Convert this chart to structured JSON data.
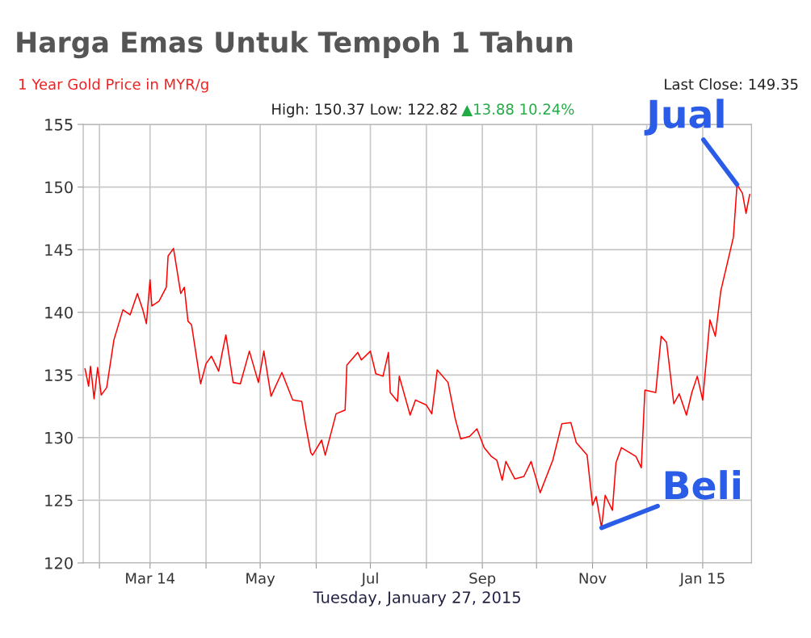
{
  "chart_data": {
    "type": "line",
    "title": "Harga Emas Untuk Tempoh 1 Tahun",
    "subtitle": "1 Year Gold Price in MYR/g",
    "xlabel": "Tuesday, January 27, 2015",
    "annotations": [
      "Last Close: 149.35",
      "High: 150.37 Low: 122.82",
      "▲13.88 10.24%",
      {
        "text": "Jual",
        "x": "2015-01-20",
        "y": 150.2
      },
      {
        "text": "Beli",
        "x": "2014-11-06",
        "y": 122.8
      }
    ],
    "x": [
      "2014-01-24",
      "2014-01-26",
      "2014-01-27",
      "2014-01-28",
      "2014-01-29",
      "2014-01-31",
      "2014-02-02",
      "2014-02-05",
      "2014-02-09",
      "2014-02-14",
      "2014-02-18",
      "2014-02-22",
      "2014-02-25",
      "2014-02-27",
      "2014-03-01",
      "2014-03-02",
      "2014-03-06",
      "2014-03-10",
      "2014-03-11",
      "2014-03-14",
      "2014-03-18",
      "2014-03-20",
      "2014-03-22",
      "2014-03-24",
      "2014-03-29",
      "2014-04-01",
      "2014-04-04",
      "2014-04-08",
      "2014-04-10",
      "2014-04-12",
      "2014-04-16",
      "2014-04-20",
      "2014-04-25",
      "2014-04-30",
      "2014-05-03",
      "2014-05-07",
      "2014-05-13",
      "2014-05-19",
      "2014-05-24",
      "2014-05-26",
      "2014-05-29",
      "2014-05-30",
      "2014-06-04",
      "2014-06-06",
      "2014-06-12",
      "2014-06-17",
      "2014-06-18",
      "2014-06-24",
      "2014-06-26",
      "2014-07-01",
      "2014-07-04",
      "2014-07-08",
      "2014-07-11",
      "2014-07-12",
      "2014-07-16",
      "2014-07-17",
      "2014-07-23",
      "2014-07-26",
      "2014-08-01",
      "2014-08-04",
      "2014-08-07",
      "2014-08-13",
      "2014-08-17",
      "2014-08-20",
      "2014-08-25",
      "2014-08-29",
      "2014-09-02",
      "2014-09-06",
      "2014-09-09",
      "2014-09-12",
      "2014-09-14",
      "2014-09-19",
      "2014-09-24",
      "2014-09-28",
      "2014-10-03",
      "2014-10-10",
      "2014-10-15",
      "2014-10-20",
      "2014-10-23",
      "2014-10-29",
      "2014-11-01",
      "2014-11-03",
      "2014-11-06",
      "2014-11-08",
      "2014-11-12",
      "2014-11-14",
      "2014-11-17",
      "2014-11-25",
      "2014-11-28",
      "2014-11-30",
      "2014-12-06",
      "2014-12-09",
      "2014-12-12",
      "2014-12-16",
      "2014-12-19",
      "2014-12-23",
      "2014-12-26",
      "2014-12-29",
      "2015-01-01",
      "2015-01-05",
      "2015-01-08",
      "2015-01-11",
      "2015-01-18",
      "2015-01-20",
      "2015-01-23",
      "2015-01-25",
      "2015-01-27"
    ],
    "series": [
      {
        "color": "#ff0000",
        "values": [
          135.5,
          134.1,
          135.7,
          134.5,
          133.1,
          135.6,
          133.4,
          134.0,
          137.8,
          140.2,
          139.8,
          141.5,
          140.2,
          139.1,
          142.6,
          140.5,
          140.9,
          142.0,
          144.5,
          145.1,
          141.5,
          142.0,
          139.3,
          139.0,
          134.3,
          135.9,
          136.5,
          135.3,
          136.8,
          138.2,
          134.4,
          134.3,
          136.9,
          134.4,
          136.9,
          133.3,
          135.2,
          133.0,
          132.9,
          131.1,
          128.8,
          128.6,
          129.8,
          128.6,
          131.9,
          132.2,
          135.8,
          136.8,
          136.2,
          136.9,
          135.1,
          134.9,
          136.8,
          133.6,
          132.9,
          134.9,
          131.8,
          133.0,
          132.6,
          131.9,
          135.4,
          134.4,
          131.5,
          129.9,
          130.1,
          130.7,
          129.2,
          128.5,
          128.2,
          126.6,
          128.1,
          126.7,
          126.9,
          128.1,
          125.6,
          128.2,
          131.1,
          131.2,
          129.6,
          128.6,
          124.6,
          125.3,
          122.8,
          125.4,
          124.2,
          128.0,
          129.2,
          128.5,
          127.6,
          133.8,
          133.6,
          138.1,
          137.6,
          132.7,
          133.5,
          131.8,
          133.6,
          134.9,
          133.0,
          139.4,
          138.1,
          141.7,
          146.0,
          150.2,
          149.5,
          147.9,
          149.4
        ]
      }
    ],
    "xlim": [
      "2014-01-23",
      "2015-01-28"
    ],
    "xticks": [
      {
        "value": "2014-02-01",
        "label": null
      },
      {
        "value": "2014-03-01",
        "label": "Mar 14"
      },
      {
        "value": "2014-04-01",
        "label": null
      },
      {
        "value": "2014-05-01",
        "label": "May"
      },
      {
        "value": "2014-06-01",
        "label": null
      },
      {
        "value": "2014-07-01",
        "label": "Jul"
      },
      {
        "value": "2014-08-01",
        "label": null
      },
      {
        "value": "2014-09-01",
        "label": "Sep"
      },
      {
        "value": "2014-10-01",
        "label": null
      },
      {
        "value": "2014-11-01",
        "label": "Nov"
      },
      {
        "value": "2014-12-01",
        "label": null
      },
      {
        "value": "2015-01-01",
        "label": "Jan 15"
      }
    ],
    "ylim": [
      120,
      155
    ],
    "yticks": [
      120,
      125,
      130,
      135,
      140,
      145,
      150,
      155
    ],
    "grid": true,
    "marker": "none",
    "line_style": "solid",
    "legend": false
  }
}
